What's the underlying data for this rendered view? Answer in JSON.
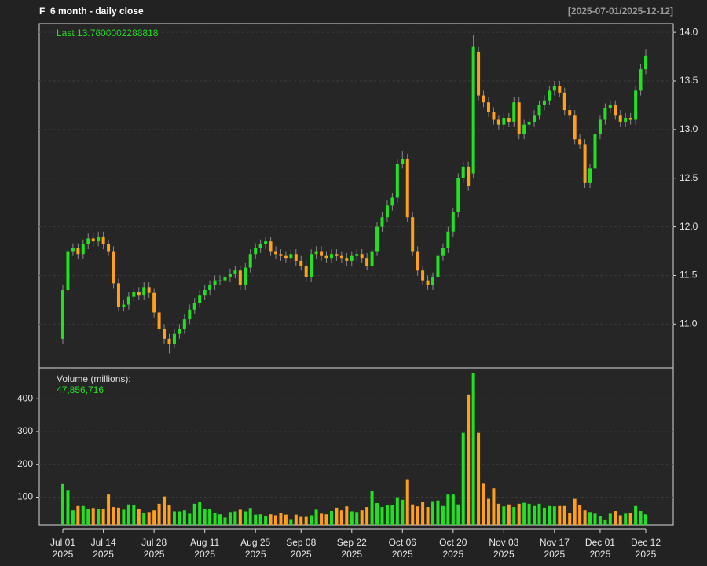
{
  "chart_data": [
    {
      "type": "candlestick",
      "title": "F  6 month - daily close",
      "subtitle": "[2025-07-01/2025-12-12]",
      "annotation": "Last 13.7600002288818",
      "up_color": "#22e022",
      "down_color": "#ff9f1a",
      "grid": true,
      "ylim": [
        10.55,
        14.09
      ],
      "yticks": [
        {
          "value": 11,
          "label": "11.0"
        },
        {
          "value": 11.5,
          "label": "11.5"
        },
        {
          "value": 12,
          "label": "12.0"
        },
        {
          "value": 12.5,
          "label": "12.5"
        },
        {
          "value": 13,
          "label": "13.0"
        },
        {
          "value": 13.5,
          "label": "13.5"
        },
        {
          "value": 14,
          "label": "14.0"
        }
      ],
      "open": [
        10.85,
        11.35,
        11.75,
        11.78,
        11.72,
        11.82,
        11.88,
        11.85,
        11.9,
        11.82,
        11.75,
        11.42,
        11.18,
        11.2,
        11.28,
        11.33,
        11.3,
        11.38,
        11.32,
        11.12,
        10.95,
        10.85,
        10.8,
        10.9,
        10.95,
        11.05,
        11.15,
        11.22,
        11.3,
        11.35,
        11.4,
        11.45,
        11.45,
        11.48,
        11.52,
        11.55,
        11.4,
        11.58,
        11.72,
        11.78,
        11.82,
        11.85,
        11.75,
        11.72,
        11.7,
        11.68,
        11.72,
        11.65,
        11.6,
        11.48,
        11.72,
        11.75,
        11.7,
        11.68,
        11.72,
        11.7,
        11.68,
        11.65,
        11.7,
        11.72,
        11.68,
        11.6,
        11.75,
        12.0,
        12.1,
        12.22,
        12.3,
        12.65,
        12.7,
        12.1,
        11.75,
        11.55,
        11.45,
        11.4,
        11.48,
        11.7,
        11.78,
        11.95,
        12.15,
        12.5,
        12.62,
        12.55,
        13.8,
        13.35,
        13.28,
        13.18,
        13.1,
        13.05,
        13.12,
        13.08,
        13.28,
        12.95,
        13.05,
        13.08,
        13.15,
        13.25,
        13.3,
        13.4,
        13.45,
        13.38,
        13.2,
        13.15,
        12.9,
        12.85,
        12.45,
        12.6,
        12.95,
        13.1,
        13.22,
        13.25,
        13.15,
        13.08,
        13.12,
        13.1,
        13.4,
        13.62
      ],
      "high": [
        11.4,
        11.8,
        11.83,
        11.83,
        11.87,
        11.93,
        11.93,
        11.95,
        11.95,
        11.87,
        11.8,
        11.47,
        11.25,
        11.33,
        11.38,
        11.38,
        11.43,
        11.43,
        11.37,
        11.17,
        11.0,
        10.9,
        10.95,
        11.0,
        11.1,
        11.2,
        11.27,
        11.35,
        11.4,
        11.45,
        11.5,
        11.5,
        11.53,
        11.57,
        11.6,
        11.6,
        11.63,
        11.77,
        11.83,
        11.87,
        11.9,
        11.9,
        11.8,
        11.77,
        11.75,
        11.77,
        11.77,
        11.7,
        11.65,
        11.77,
        11.8,
        11.8,
        11.75,
        11.77,
        11.77,
        11.75,
        11.73,
        11.75,
        11.77,
        11.77,
        11.73,
        11.8,
        12.05,
        12.15,
        12.27,
        12.35,
        12.7,
        12.78,
        12.75,
        12.15,
        11.8,
        11.6,
        11.5,
        11.53,
        11.75,
        11.83,
        12.0,
        12.2,
        12.55,
        12.67,
        12.67,
        13.97,
        13.85,
        13.4,
        13.33,
        13.23,
        13.15,
        13.17,
        13.17,
        13.33,
        13.33,
        13.1,
        13.13,
        13.2,
        13.3,
        13.35,
        13.45,
        13.5,
        13.5,
        13.43,
        13.25,
        13.2,
        12.95,
        12.9,
        12.65,
        13.0,
        13.15,
        13.27,
        13.3,
        13.3,
        13.2,
        13.17,
        13.17,
        13.45,
        13.67,
        13.83
      ],
      "low": [
        10.8,
        11.3,
        11.7,
        11.67,
        11.67,
        11.77,
        11.8,
        11.8,
        11.77,
        11.7,
        11.37,
        11.13,
        11.13,
        11.15,
        11.23,
        11.25,
        11.25,
        11.27,
        11.07,
        10.9,
        10.8,
        10.7,
        10.75,
        10.85,
        10.9,
        11.0,
        11.1,
        11.17,
        11.25,
        11.3,
        11.35,
        11.4,
        11.4,
        11.43,
        11.47,
        11.35,
        11.35,
        11.53,
        11.67,
        11.73,
        11.77,
        11.7,
        11.67,
        11.65,
        11.63,
        11.63,
        11.6,
        11.55,
        11.43,
        11.43,
        11.67,
        11.65,
        11.63,
        11.63,
        11.65,
        11.63,
        11.6,
        11.6,
        11.65,
        11.63,
        11.55,
        11.55,
        11.7,
        11.95,
        12.05,
        12.17,
        12.25,
        12.6,
        12.05,
        11.7,
        11.5,
        11.4,
        11.35,
        11.35,
        11.43,
        11.65,
        11.73,
        11.9,
        12.1,
        12.45,
        12.37,
        12.5,
        13.3,
        13.23,
        13.13,
        13.05,
        13.0,
        13.0,
        13.03,
        13.03,
        12.9,
        12.9,
        13.0,
        13.03,
        13.1,
        13.2,
        13.25,
        13.35,
        13.33,
        13.15,
        13.1,
        12.85,
        12.8,
        12.4,
        12.4,
        12.55,
        12.9,
        13.05,
        13.17,
        13.1,
        13.03,
        13.03,
        13.05,
        13.05,
        13.35,
        13.57
      ],
      "close": [
        11.35,
        11.75,
        11.78,
        11.72,
        11.82,
        11.88,
        11.85,
        11.9,
        11.82,
        11.75,
        11.42,
        11.18,
        11.2,
        11.28,
        11.33,
        11.3,
        11.38,
        11.32,
        11.12,
        10.95,
        10.85,
        10.8,
        10.9,
        10.95,
        11.05,
        11.15,
        11.22,
        11.3,
        11.35,
        11.4,
        11.45,
        11.45,
        11.48,
        11.52,
        11.55,
        11.4,
        11.58,
        11.72,
        11.78,
        11.82,
        11.85,
        11.75,
        11.72,
        11.7,
        11.68,
        11.72,
        11.65,
        11.6,
        11.48,
        11.72,
        11.75,
        11.7,
        11.68,
        11.72,
        11.7,
        11.68,
        11.65,
        11.7,
        11.72,
        11.68,
        11.6,
        11.75,
        12.0,
        12.1,
        12.22,
        12.3,
        12.65,
        12.7,
        12.1,
        11.75,
        11.55,
        11.45,
        11.4,
        11.48,
        11.7,
        11.78,
        11.95,
        12.15,
        12.5,
        12.62,
        12.42,
        13.85,
        13.35,
        13.28,
        13.18,
        13.1,
        13.05,
        13.12,
        13.08,
        13.28,
        12.95,
        13.05,
        13.08,
        13.15,
        13.25,
        13.3,
        13.4,
        13.45,
        13.38,
        13.2,
        13.15,
        12.9,
        12.85,
        12.45,
        12.6,
        12.95,
        13.1,
        13.22,
        13.25,
        13.15,
        13.08,
        13.12,
        13.1,
        13.4,
        13.62,
        13.76
      ]
    },
    {
      "type": "bar",
      "title": "Volume (millions):",
      "annotation": "47,856,716",
      "grid": true,
      "ylim": [
        15,
        494
      ],
      "yticks": [
        100,
        200,
        300,
        400
      ],
      "xticks": [
        {
          "value": 0,
          "label": "Jul 01\n2025"
        },
        {
          "value": 8,
          "label": "Jul 14\n2025"
        },
        {
          "value": 18,
          "label": "Jul 28\n2025"
        },
        {
          "value": 28,
          "label": "Aug 11\n2025"
        },
        {
          "value": 38,
          "label": "Aug 25\n2025"
        },
        {
          "value": 47,
          "label": "Sep 08\n2025"
        },
        {
          "value": 57,
          "label": "Sep 22\n2025"
        },
        {
          "value": 67,
          "label": "Oct 06\n2025"
        },
        {
          "value": 77,
          "label": "Oct 20\n2025"
        },
        {
          "value": 87,
          "label": "Nov 03\n2025"
        },
        {
          "value": 97,
          "label": "Nov 17\n2025"
        },
        {
          "value": 106,
          "label": "Dec 01\n2025"
        },
        {
          "value": 115,
          "label": "Dec 12\n2025"
        }
      ],
      "values": [
        140,
        122,
        60,
        73,
        73,
        65,
        67,
        64,
        65,
        108,
        70,
        68,
        62,
        78,
        75,
        65,
        52,
        55,
        60,
        80,
        102,
        76,
        57,
        57,
        60,
        50,
        80,
        85,
        63,
        63,
        53,
        48,
        38,
        55,
        57,
        62,
        57,
        67,
        47,
        48,
        43,
        48,
        45,
        53,
        47,
        33,
        47,
        40,
        40,
        45,
        62,
        50,
        48,
        58,
        68,
        60,
        72,
        57,
        55,
        60,
        70,
        118,
        82,
        70,
        75,
        75,
        100,
        92,
        155,
        78,
        72,
        85,
        70,
        88,
        90,
        73,
        108,
        108,
        78,
        296,
        413,
        478,
        296,
        141,
        95,
        127,
        80,
        72,
        78,
        70,
        80,
        83,
        80,
        73,
        80,
        68,
        73,
        72,
        73,
        73,
        52,
        95,
        75,
        60,
        55,
        50,
        43,
        32,
        50,
        58,
        45,
        50,
        53,
        73,
        58,
        47.86
      ]
    }
  ]
}
